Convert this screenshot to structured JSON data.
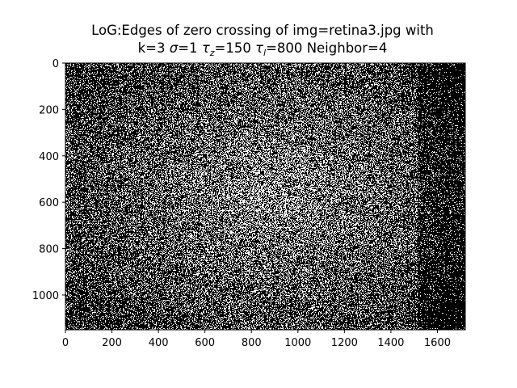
{
  "title": {
    "line1": "LoG:Edges of zero crossing of img=retina3.jpg with",
    "line2_parts": {
      "k": "k=3",
      "sigma_symbol": "σ",
      "sigma_value": "=1",
      "tau_symbol": "τ",
      "tau_z_sub": "z",
      "tau_z_value": "=150",
      "tau_l_sub": "l",
      "tau_l_value": "=800",
      "neighbor": "Neighbor=4"
    }
  },
  "image": {
    "description_kind": "binary edge map",
    "colors": {
      "background": "#000000",
      "edge": "#ffffff"
    }
  },
  "axes": {
    "x_range": [
      0,
      1720
    ],
    "y_range": [
      0,
      1150
    ],
    "y_inverted": true,
    "x_ticks": [
      "0",
      "200",
      "400",
      "600",
      "800",
      "1000",
      "1200",
      "1400",
      "1600"
    ],
    "y_ticks": [
      "0",
      "200",
      "400",
      "600",
      "800",
      "1000"
    ]
  }
}
